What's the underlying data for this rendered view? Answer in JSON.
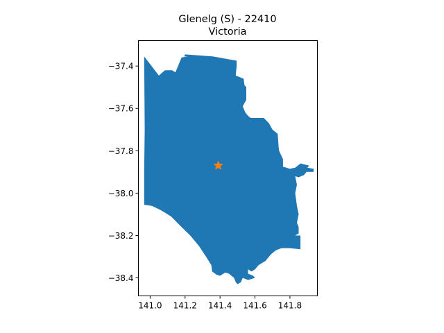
{
  "chart_data": {
    "type": "map",
    "title_lines": [
      "Glenelg (S) - 22410",
      "Victoria"
    ],
    "xlabel": "",
    "ylabel": "",
    "xlim": [
      140.933,
      141.957
    ],
    "ylim": [
      -38.485,
      -37.28
    ],
    "x_ticks": [
      141.0,
      141.2,
      141.4,
      141.6,
      141.8
    ],
    "x_tick_labels": [
      "141.0",
      "141.2",
      "141.4",
      "141.6",
      "141.8"
    ],
    "y_ticks": [
      -37.4,
      -37.6,
      -37.8,
      -38.0,
      -38.2,
      -38.4
    ],
    "y_tick_labels": [
      "−37.4",
      "−37.6",
      "−37.8",
      "−38.0",
      "−38.2",
      "−38.4"
    ],
    "grid": false,
    "region": {
      "name": "Glenelg (S) - 22410",
      "fill_color": "#1f77b4",
      "outline": [
        [
          140.966,
          -37.355
        ],
        [
          141.05,
          -37.445
        ],
        [
          141.085,
          -37.42
        ],
        [
          141.125,
          -37.42
        ],
        [
          141.145,
          -37.43
        ],
        [
          141.18,
          -37.36
        ],
        [
          141.215,
          -37.355
        ],
        [
          141.195,
          -37.355
        ],
        [
          141.2,
          -37.345
        ],
        [
          141.36,
          -37.355
        ],
        [
          141.495,
          -37.375
        ],
        [
          141.495,
          -37.4
        ],
        [
          141.49,
          -37.445
        ],
        [
          141.535,
          -37.46
        ],
        [
          141.54,
          -37.49
        ],
        [
          141.55,
          -37.5
        ],
        [
          141.55,
          -37.56
        ],
        [
          141.53,
          -37.59
        ],
        [
          141.545,
          -37.62
        ],
        [
          141.56,
          -37.635
        ],
        [
          141.575,
          -37.645
        ],
        [
          141.65,
          -37.645
        ],
        [
          141.68,
          -37.67
        ],
        [
          141.7,
          -37.7
        ],
        [
          141.73,
          -37.72
        ],
        [
          141.735,
          -37.78
        ],
        [
          141.738,
          -37.8
        ],
        [
          141.76,
          -37.84
        ],
        [
          141.76,
          -37.875
        ],
        [
          141.8,
          -37.885
        ],
        [
          141.83,
          -37.88
        ],
        [
          141.86,
          -37.86
        ],
        [
          141.91,
          -37.87
        ],
        [
          141.9,
          -37.88
        ],
        [
          141.935,
          -37.885
        ],
        [
          141.935,
          -37.9
        ],
        [
          141.895,
          -37.9
        ],
        [
          141.88,
          -37.915
        ],
        [
          141.85,
          -37.925
        ],
        [
          141.83,
          -37.92
        ],
        [
          141.84,
          -37.96
        ],
        [
          141.83,
          -38.0
        ],
        [
          141.84,
          -38.06
        ],
        [
          141.85,
          -38.1
        ],
        [
          141.84,
          -38.14
        ],
        [
          141.85,
          -38.16
        ],
        [
          141.85,
          -38.19
        ],
        [
          141.83,
          -38.2
        ],
        [
          141.86,
          -38.2
        ],
        [
          141.86,
          -38.265
        ],
        [
          141.8,
          -38.26
        ],
        [
          141.75,
          -38.26
        ],
        [
          141.72,
          -38.27
        ],
        [
          141.69,
          -38.29
        ],
        [
          141.66,
          -38.32
        ],
        [
          141.62,
          -38.34
        ],
        [
          141.6,
          -38.36
        ],
        [
          141.58,
          -38.37
        ],
        [
          141.56,
          -38.36
        ],
        [
          141.56,
          -38.38
        ],
        [
          141.59,
          -38.39
        ],
        [
          141.6,
          -38.4
        ],
        [
          141.56,
          -38.41
        ],
        [
          141.53,
          -38.4
        ],
        [
          141.52,
          -38.42
        ],
        [
          141.5,
          -38.43
        ],
        [
          141.49,
          -38.42
        ],
        [
          141.48,
          -38.4
        ],
        [
          141.45,
          -38.38
        ],
        [
          141.43,
          -38.375
        ],
        [
          141.4,
          -38.39
        ],
        [
          141.38,
          -38.385
        ],
        [
          141.355,
          -38.37
        ],
        [
          141.35,
          -38.34
        ],
        [
          141.32,
          -38.3
        ],
        [
          141.28,
          -38.25
        ],
        [
          141.23,
          -38.2
        ],
        [
          141.18,
          -38.16
        ],
        [
          141.12,
          -38.11
        ],
        [
          141.06,
          -38.08
        ],
        [
          141.01,
          -38.06
        ],
        [
          140.966,
          -38.055
        ],
        [
          140.966,
          -37.9
        ],
        [
          140.969,
          -37.7
        ]
      ]
    },
    "marker": {
      "symbol": "star",
      "color": "#ff7f0e",
      "lon": 141.39,
      "lat": -37.87
    }
  }
}
